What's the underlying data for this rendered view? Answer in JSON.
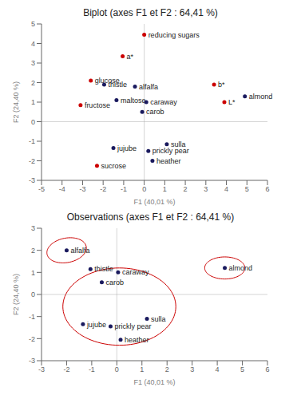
{
  "chart_data": [
    {
      "type": "scatter",
      "title": "Biplot (axes F1 et F2 : 64,41 %)",
      "x_label": "F1 (40,01 %)",
      "y_label": "F2 (24,40 %)",
      "xlim": [
        -5,
        6
      ],
      "ylim": [
        -3,
        5
      ],
      "xticks": [
        -5,
        -4,
        -3,
        -2,
        -1,
        0,
        1,
        2,
        3,
        4,
        5,
        6
      ],
      "yticks": [
        -3,
        -2,
        -1,
        0,
        1,
        2,
        3,
        4,
        5
      ],
      "grid": false,
      "series": [
        {
          "color": "#cc0000",
          "x": [
            0.0,
            -1.05,
            -2.6,
            -3.1,
            -2.3,
            3.4,
            3.9
          ],
          "y": [
            4.45,
            3.35,
            2.1,
            0.85,
            -2.25,
            1.9,
            1.0
          ],
          "labels": [
            "reducing sugars",
            "a*",
            "glucose",
            "fructose",
            "sucrose",
            "b*",
            "L*"
          ]
        },
        {
          "color": "#1a1a5e",
          "x": [
            -1.95,
            -1.35,
            -0.45,
            0.1,
            -0.1,
            -1.5,
            0.2,
            1.1,
            0.4,
            4.9
          ],
          "y": [
            1.9,
            1.1,
            1.8,
            1.0,
            0.5,
            -1.35,
            -1.5,
            -1.15,
            -2.0,
            1.3
          ],
          "labels": [
            "thistle",
            "maltose",
            "alfalfa",
            "caraway",
            "carob",
            "jujube",
            "prickly pear",
            "sulla",
            "heather",
            "almond"
          ]
        }
      ],
      "ellipses": []
    },
    {
      "type": "scatter",
      "title": "Observations (axes F1 et F2 : 64,41 %)",
      "x_label": "F1 (40,01 %)",
      "y_label": "F2 (24,40 %)",
      "xlim": [
        -3,
        6
      ],
      "ylim": [
        -3,
        3
      ],
      "xticks": [
        -3,
        -2,
        -1,
        0,
        1,
        2,
        3,
        4,
        5,
        6
      ],
      "yticks": [
        -3,
        -2,
        -1,
        0,
        1,
        2,
        3
      ],
      "grid": false,
      "series": [
        {
          "color": "#1a1a5e",
          "x": [
            -2.0,
            -1.05,
            -0.6,
            0.05,
            -1.35,
            -0.25,
            1.2,
            0.15,
            4.3
          ],
          "y": [
            2.0,
            1.15,
            0.55,
            1.0,
            -1.35,
            -1.45,
            -1.1,
            -2.05,
            1.2
          ],
          "labels": [
            "alfalfa",
            "thistle",
            "carob",
            "caraway",
            "jujube",
            "prickly pear",
            "sulla",
            "heather",
            "almond"
          ]
        }
      ],
      "ellipses": [
        {
          "cx": -2.0,
          "cy": 2.0,
          "width": 1.6,
          "height": 1.1,
          "angle": 15,
          "color": "#cc0000"
        },
        {
          "cx": 0.1,
          "cy": -0.55,
          "width": 4.5,
          "height": 3.5,
          "angle": 0,
          "color": "#cc0000"
        },
        {
          "cx": 4.3,
          "cy": 1.2,
          "width": 1.6,
          "height": 1.0,
          "angle": 0,
          "color": "#cc0000"
        }
      ]
    }
  ]
}
